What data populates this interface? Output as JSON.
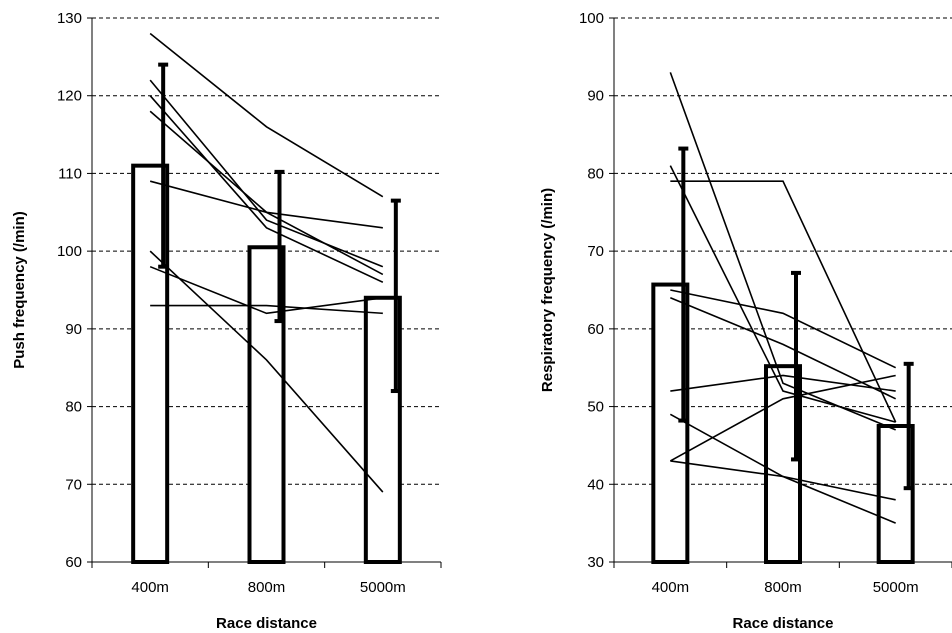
{
  "chart_data": [
    {
      "type": "bar",
      "title": "",
      "xlabel": "Race distance",
      "ylabel": "Push  frequency (/min)",
      "ylim": [
        60,
        130
      ],
      "yticks": [
        "60",
        "70",
        "80",
        "90",
        "100",
        "110",
        "120",
        "130"
      ],
      "grid": true,
      "categories": [
        "400m",
        "800m",
        "5000m"
      ],
      "series": [
        {
          "values": [
            111,
            100.5,
            94
          ]
        }
      ],
      "error_bars": [
        {
          "low": 98,
          "high": 124
        },
        {
          "low": 91,
          "high": 110.2
        },
        {
          "low": 82,
          "high": 106.5
        }
      ],
      "individual_lines": [
        [
          128,
          116,
          107
        ],
        [
          122,
          104,
          98
        ],
        [
          120,
          103,
          96
        ],
        [
          118,
          105,
          97
        ],
        [
          109,
          105,
          103
        ],
        [
          100,
          86,
          69
        ],
        [
          98,
          92,
          94
        ],
        [
          93,
          93,
          92
        ]
      ]
    },
    {
      "type": "bar",
      "title": "",
      "xlabel": "Race distance",
      "ylabel": "Respiratory frequency (/min)",
      "ylim": [
        30,
        100
      ],
      "yticks": [
        "30",
        "40",
        "50",
        "60",
        "70",
        "80",
        "90",
        "100"
      ],
      "grid": true,
      "categories": [
        "400m",
        "800m",
        "5000m"
      ],
      "series": [
        {
          "values": [
            65.7,
            55.2,
            47.5
          ]
        }
      ],
      "error_bars": [
        {
          "low": 48.2,
          "high": 83.2
        },
        {
          "low": 43.2,
          "high": 67.2
        },
        {
          "low": 39.5,
          "high": 55.5
        }
      ],
      "individual_lines": [
        [
          93,
          53,
          47
        ],
        [
          81,
          52,
          48
        ],
        [
          79,
          79,
          48
        ],
        [
          65,
          62,
          55
        ],
        [
          64,
          58,
          51
        ],
        [
          52,
          54,
          52
        ],
        [
          49,
          41,
          35
        ],
        [
          43,
          51,
          54
        ],
        [
          43,
          41,
          38
        ]
      ]
    }
  ]
}
